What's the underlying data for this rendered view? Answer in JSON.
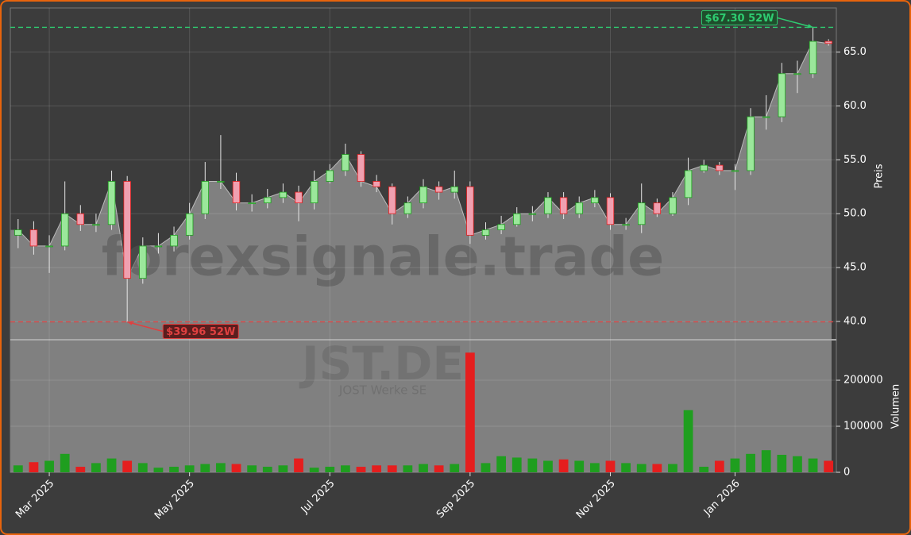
{
  "chart_data": {
    "type": "candlestick",
    "title": "JST.DE",
    "subtitle": "JOST Werke SE",
    "watermark": "forexsignale.trade",
    "ylabel": "Preis",
    "volume_label": "Volumen",
    "categories": [
      null,
      null,
      "Mar 2025",
      null,
      null,
      null,
      null,
      null,
      null,
      null,
      null,
      "May 2025",
      null,
      null,
      null,
      null,
      null,
      null,
      null,
      null,
      "Jul 2025",
      null,
      null,
      null,
      null,
      null,
      null,
      null,
      null,
      "Sep 2025",
      null,
      null,
      null,
      null,
      null,
      null,
      null,
      null,
      "Nov 2025",
      null,
      null,
      null,
      null,
      null,
      null,
      null,
      "Jan 2026",
      null,
      null,
      null,
      null,
      null,
      null
    ],
    "open": [
      48,
      48.5,
      47,
      47,
      50,
      49,
      49,
      53,
      44,
      47,
      47,
      48,
      50,
      53,
      53,
      51,
      51,
      51.5,
      52,
      51,
      53,
      54,
      55.5,
      53,
      52.5,
      50,
      51,
      52.5,
      52,
      52.5,
      48,
      48.5,
      49,
      50,
      50,
      51.5,
      50,
      51,
      51.5,
      49,
      49,
      51,
      50,
      51.5,
      54,
      54.5,
      54,
      54,
      59,
      59,
      63,
      63,
      66
    ],
    "high": [
      49.5,
      49.3,
      48,
      53,
      50.8,
      50,
      54,
      53.5,
      47.8,
      48.2,
      48.8,
      51,
      54.8,
      57.3,
      53.8,
      51.8,
      52.3,
      52.8,
      52.6,
      54,
      54.6,
      56.5,
      55.8,
      53.6,
      52.8,
      51.6,
      53.2,
      53,
      54,
      53,
      49.2,
      49.8,
      50.6,
      50.7,
      52,
      52,
      51.6,
      52.2,
      51.9,
      49.6,
      52.8,
      51.4,
      52,
      55.2,
      55,
      54.8,
      54.6,
      59.8,
      61,
      64,
      64.2,
      67.3,
      66.2
    ],
    "low": [
      46.8,
      46.2,
      44.5,
      46.6,
      48.4,
      48.3,
      48.5,
      39.96,
      43.5,
      46.3,
      46.5,
      47.6,
      49.5,
      52.3,
      50.3,
      50.2,
      50.5,
      51,
      49.3,
      50.4,
      52.8,
      53.5,
      52.5,
      52,
      49,
      49.6,
      50.5,
      51.3,
      51.4,
      47.2,
      47.6,
      48.1,
      48.8,
      49.3,
      49.6,
      49.5,
      49.6,
      50.6,
      48.5,
      48.5,
      48.2,
      49.7,
      49.8,
      50.8,
      53.8,
      53.6,
      52.2,
      53.6,
      57.8,
      58.5,
      61.2,
      62.6,
      65.6
    ],
    "close": [
      48.5,
      47,
      47,
      50,
      49,
      49,
      53,
      44,
      47,
      47,
      48,
      50,
      53,
      53,
      51,
      51,
      51.5,
      52,
      51,
      53,
      54,
      55.5,
      53,
      52.5,
      50,
      51,
      52.5,
      52,
      52.5,
      48,
      48.5,
      49,
      50,
      50,
      51.5,
      50,
      51,
      51.5,
      49,
      49,
      51,
      50,
      51.5,
      54,
      54.5,
      54,
      54,
      59,
      59,
      63,
      63,
      66,
      65.8
    ],
    "volume": [
      15000,
      22000,
      25000,
      40000,
      12000,
      20000,
      30000,
      25000,
      20000,
      10000,
      12000,
      15000,
      18000,
      20000,
      18000,
      15000,
      12000,
      15000,
      30000,
      10000,
      12000,
      15000,
      12000,
      15000,
      15000,
      15000,
      18000,
      15000,
      18000,
      260000,
      20000,
      35000,
      32000,
      30000,
      25000,
      28000,
      25000,
      20000,
      25000,
      20000,
      18000,
      18000,
      18000,
      135000,
      12000,
      25000,
      30000,
      40000,
      48000,
      38000,
      35000,
      30000,
      25000
    ],
    "ylim": [
      38.3,
      69.1
    ],
    "yticks": [
      {
        "value": 40,
        "label": "40.0"
      },
      {
        "value": 45,
        "label": "45.0"
      },
      {
        "value": 50,
        "label": "50.0"
      },
      {
        "value": 55,
        "label": "55.0"
      },
      {
        "value": 60,
        "label": "60.0"
      },
      {
        "value": 65,
        "label": "65.0"
      }
    ],
    "volume_ylim": [
      0,
      288000
    ],
    "volume_yticks": [
      0,
      100000,
      200000
    ],
    "up_color": "#1f9e1f",
    "down_color": "#e51e1e",
    "area_color": "#808080",
    "grid": true,
    "annotations": [
      {
        "label": "$67.30 52W",
        "value": 67.3,
        "color": "#2ecc71"
      },
      {
        "label": "$39.96 52W",
        "value": 39.96,
        "color": "#e04040"
      }
    ]
  }
}
